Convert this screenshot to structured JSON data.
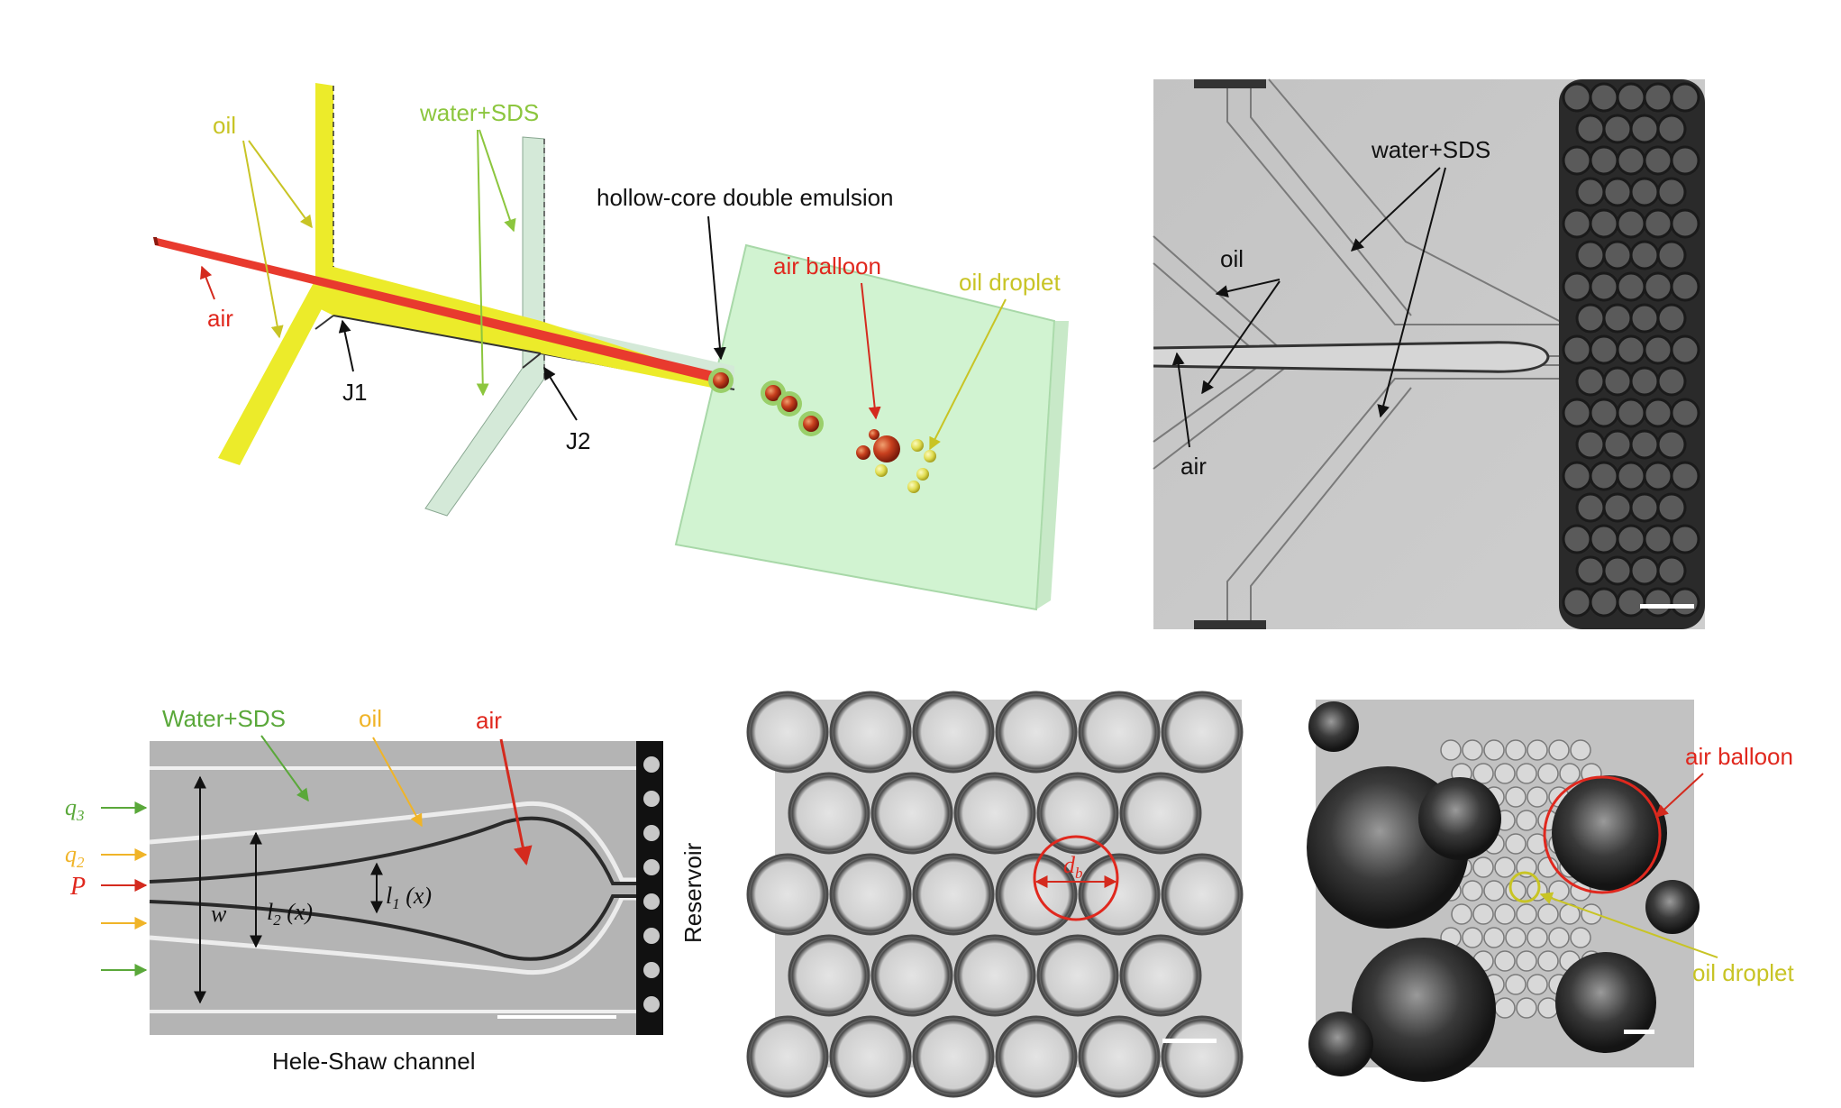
{
  "panel_a": {
    "oil": "oil",
    "water_sds": "water+SDS",
    "air": "air",
    "hollow_core": "hollow-core double emulsion",
    "air_balloon": "air balloon",
    "oil_droplet": "oil droplet",
    "j1": "J1",
    "j2": "J2"
  },
  "panel_b": {
    "water_sds": "water+SDS",
    "oil": "oil",
    "air": "air"
  },
  "panel_c": {
    "water_sds": "Water+SDS",
    "oil": "oil",
    "air": "air",
    "q3": "q",
    "q3_sub": "3",
    "q2": "q",
    "q2_sub": "2",
    "p": "P",
    "w": "w",
    "l1": "l",
    "l1_sub": "1",
    "l1_arg": " (x)",
    "l2": "l",
    "l2_sub": "2",
    "l2_arg": " (x)",
    "reservoir": "Reservoir",
    "caption": "Hele-Shaw channel"
  },
  "panel_d": {
    "db": "d",
    "db_sub": "b"
  },
  "panel_e": {
    "air_balloon": "air balloon",
    "oil_droplet": "oil droplet"
  },
  "colors": {
    "oil": "#e8e62a",
    "air": "#e83a2e",
    "water": "#cfe8d4",
    "label_oil": "#c8c425",
    "label_water": "#8cc63e",
    "label_air": "#e0281e",
    "label_q3": "#5aa83a",
    "label_q2": "#f0b428",
    "arrow_orange": "#f0b428"
  }
}
